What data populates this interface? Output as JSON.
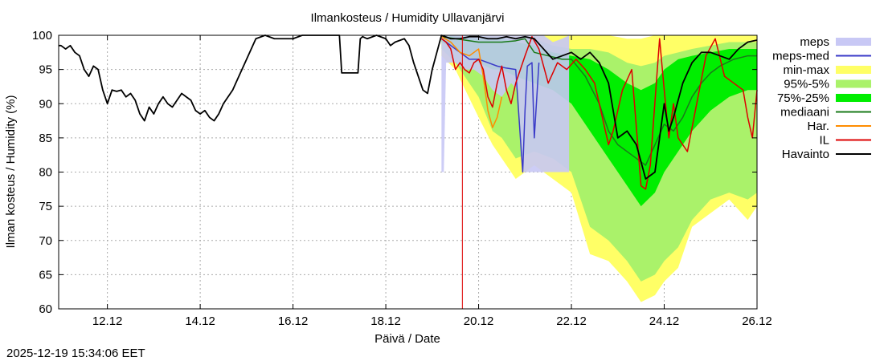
{
  "chart_data": {
    "type": "line",
    "title": "Ilmankosteus / Humidity  Ullavanjärvi",
    "xlabel": "Päivä / Date",
    "ylabel": "Ilman kosteus / Humidity (%)",
    "timestamp": "2025-12-19 15:34:06 EET",
    "xlim": [
      10.95,
      26.0
    ],
    "ylim": [
      60,
      100
    ],
    "x_unit": "day of December 2025",
    "xticks": [
      {
        "value": 12,
        "label": "12.12"
      },
      {
        "value": 14,
        "label": "14.12"
      },
      {
        "value": 16,
        "label": "16.12"
      },
      {
        "value": 18,
        "label": "18.12"
      },
      {
        "value": 20,
        "label": "20.12"
      },
      {
        "value": 22,
        "label": "22.12"
      },
      {
        "value": 24,
        "label": "24.12"
      },
      {
        "value": 26,
        "label": "26.12"
      }
    ],
    "yticks": [
      {
        "value": 60,
        "label": "60"
      },
      {
        "value": 65,
        "label": "65"
      },
      {
        "value": 70,
        "label": "70"
      },
      {
        "value": 75,
        "label": "75"
      },
      {
        "value": 80,
        "label": "80"
      },
      {
        "value": 85,
        "label": "85"
      },
      {
        "value": 90,
        "label": "90"
      },
      {
        "value": 95,
        "label": "95"
      },
      {
        "value": 100,
        "label": "100"
      }
    ],
    "grid": true,
    "now_marker": 19.65,
    "legend": [
      {
        "label": "meps",
        "kind": "band",
        "color": "#c8c8f5"
      },
      {
        "label": "meps-med",
        "kind": "line",
        "color": "#3a3ac8"
      },
      {
        "label": "min-max",
        "kind": "band",
        "color": "#ffff66"
      },
      {
        "label": "95%-5%",
        "kind": "band",
        "color": "#aaf26a"
      },
      {
        "label": "75%-25%",
        "kind": "band",
        "color": "#00ee00"
      },
      {
        "label": "mediaani",
        "kind": "line",
        "color": "#1a7a1a"
      },
      {
        "label": "Har.",
        "kind": "line",
        "color": "#ff8c00"
      },
      {
        "label": "IL",
        "kind": "line",
        "color": "#dd0000"
      },
      {
        "label": "Havainto",
        "kind": "line",
        "color": "#000000"
      }
    ],
    "series": [
      {
        "name": "meps",
        "kind": "band",
        "color": "#c8c8f5",
        "x": [
          19.2,
          19.25,
          19.3,
          19.5,
          19.7,
          19.9,
          20.1,
          20.3,
          20.5,
          20.7,
          20.85,
          20.95,
          21.0,
          21.2,
          21.4,
          21.6,
          21.8,
          21.95
        ],
        "upper": [
          100,
          100,
          100,
          100,
          100,
          100,
          100,
          100,
          100,
          100,
          100,
          100,
          100,
          100,
          100,
          99,
          99.5,
          100
        ],
        "lower": [
          80,
          80,
          96,
          96,
          95,
          95,
          94,
          92,
          91,
          93,
          92,
          80,
          80,
          80,
          80,
          80,
          80,
          80
        ]
      },
      {
        "name": "meps-med",
        "kind": "line",
        "color": "#3a3ac8",
        "x": [
          19.2,
          19.4,
          19.6,
          19.8,
          20.0,
          20.2,
          20.4,
          20.6,
          20.8,
          20.95,
          21.0,
          21.05,
          21.15,
          21.2,
          21.3
        ],
        "y": [
          99.5,
          98.5,
          97.5,
          96.5,
          96.5,
          96,
          95.5,
          95.2,
          95,
          80,
          89,
          95.5,
          96,
          85,
          96
        ]
      },
      {
        "name": "min-max",
        "kind": "band",
        "color": "#ffff66",
        "x": [
          19.2,
          19.5,
          20.0,
          20.3,
          20.5,
          20.8,
          21.2,
          21.6,
          22.0,
          22.4,
          22.8,
          23.2,
          23.5,
          23.8,
          24.0,
          24.3,
          24.6,
          25.0,
          25.4,
          25.8,
          26.0
        ],
        "upper": [
          100,
          100,
          100,
          100,
          100,
          100,
          100,
          100,
          100,
          100,
          100,
          99.5,
          99.5,
          100,
          100,
          100,
          100,
          100,
          100,
          100,
          100
        ],
        "lower": [
          97,
          95,
          88,
          84,
          82,
          79,
          81,
          79,
          77,
          68,
          67,
          64,
          61,
          62,
          64,
          66,
          72,
          74,
          76,
          73,
          75
        ]
      },
      {
        "name": "95%-5%",
        "kind": "band",
        "color": "#aaf26a",
        "x": [
          19.2,
          19.5,
          20.0,
          20.3,
          20.5,
          20.8,
          21.2,
          21.6,
          22.0,
          22.4,
          22.8,
          23.2,
          23.5,
          23.8,
          24.0,
          24.3,
          24.6,
          25.0,
          25.4,
          25.8,
          26.0
        ],
        "upper": [
          100,
          100,
          100,
          99.8,
          99.8,
          99.5,
          99.5,
          98.5,
          98,
          98,
          97.5,
          96,
          95.5,
          96,
          97,
          97.5,
          98,
          98.5,
          99,
          99,
          99
        ],
        "lower": [
          98,
          96,
          91,
          86,
          85,
          82,
          83,
          82,
          80,
          72,
          70,
          67,
          64,
          65,
          67,
          69,
          73,
          76,
          77,
          76,
          77
        ]
      },
      {
        "name": "75%-25%",
        "kind": "band",
        "color": "#00ee00",
        "x": [
          19.2,
          19.5,
          20.0,
          20.3,
          20.5,
          20.8,
          21.2,
          21.6,
          22.0,
          22.4,
          22.8,
          23.2,
          23.5,
          23.8,
          24.0,
          24.3,
          24.6,
          25.0,
          25.4,
          25.8,
          26.0
        ],
        "upper": [
          100,
          99.8,
          99.5,
          99.5,
          99.5,
          99,
          98.5,
          97.5,
          97,
          96.5,
          95,
          93,
          92,
          93,
          95,
          96.5,
          97,
          97.5,
          98,
          98,
          98
        ],
        "lower": [
          99,
          98,
          96,
          95,
          95,
          94,
          93,
          92,
          90,
          86,
          82,
          78,
          75,
          77,
          80,
          83,
          86,
          89,
          91,
          92,
          92
        ]
      },
      {
        "name": "mediaani",
        "kind": "line",
        "color": "#1a7a1a",
        "x": [
          19.2,
          19.5,
          20.0,
          20.3,
          20.5,
          20.8,
          21.0,
          21.2,
          21.5,
          21.8,
          22.0,
          22.3,
          22.6,
          22.8,
          23.0,
          23.2,
          23.4,
          23.6,
          23.8,
          24.0,
          24.2,
          24.4,
          24.6,
          24.8,
          25.0,
          25.2,
          25.5,
          25.8,
          26.0
        ],
        "y": [
          99.8,
          99.5,
          99,
          99,
          99,
          99.2,
          99.5,
          97.5,
          97,
          96.5,
          96.5,
          94,
          90,
          86,
          84,
          83,
          82,
          81,
          84,
          87,
          86,
          88,
          91,
          93,
          94.5,
          95.5,
          96.5,
          97,
          97
        ]
      },
      {
        "name": "Har.",
        "kind": "line",
        "color": "#ff8c00",
        "x": [
          19.2,
          19.4,
          19.6,
          19.8,
          20.0,
          20.1,
          20.2,
          20.3,
          20.4,
          20.5
        ],
        "y": [
          99.8,
          99,
          97.5,
          97,
          98,
          94,
          89,
          86.5,
          88,
          91
        ]
      },
      {
        "name": "IL",
        "kind": "line",
        "color": "#dd0000",
        "x": [
          19.2,
          19.3,
          19.4,
          19.5,
          19.6,
          19.7,
          19.8,
          19.9,
          20.0,
          20.1,
          20.2,
          20.3,
          20.4,
          20.5,
          20.6,
          20.7,
          20.8,
          20.9,
          21.0,
          21.15,
          21.3,
          21.5,
          21.7,
          21.9,
          22.1,
          22.3,
          22.5,
          22.7,
          22.8,
          22.9,
          23.1,
          23.3,
          23.5,
          23.6,
          23.7,
          23.9,
          24.0,
          24.1,
          24.2,
          24.3,
          24.5,
          24.7,
          24.9,
          25.1,
          25.3,
          25.5,
          25.7,
          25.8,
          25.9,
          26.0
        ],
        "y": [
          99.5,
          99,
          98,
          95,
          96,
          95,
          94.5,
          96,
          96.5,
          95,
          91,
          89.5,
          93,
          95.5,
          92,
          90,
          93,
          95,
          97,
          99.8,
          98,
          93,
          96,
          95,
          96.5,
          95,
          93,
          87,
          84,
          86,
          92,
          95,
          78,
          77.5,
          81,
          99.5,
          92,
          85,
          90,
          85,
          83,
          90,
          97,
          99.5,
          94,
          93,
          92,
          88,
          85,
          92
        ]
      },
      {
        "name": "Havainto",
        "kind": "line",
        "color": "#000000",
        "x": [
          10.95,
          11.0,
          11.1,
          11.2,
          11.3,
          11.4,
          11.5,
          11.6,
          11.7,
          11.8,
          11.9,
          12.0,
          12.1,
          12.2,
          12.3,
          12.4,
          12.5,
          12.6,
          12.7,
          12.8,
          12.9,
          13.0,
          13.1,
          13.2,
          13.3,
          13.4,
          13.5,
          13.6,
          13.7,
          13.8,
          13.9,
          14.0,
          14.1,
          14.2,
          14.3,
          14.4,
          14.5,
          14.6,
          14.7,
          14.8,
          14.9,
          15.0,
          15.2,
          15.4,
          15.6,
          15.8,
          16.0,
          16.2,
          16.4,
          16.6,
          16.8,
          17.0,
          17.05,
          17.1,
          17.2,
          17.4,
          17.45,
          17.5,
          17.6,
          17.8,
          18.0,
          18.1,
          18.2,
          18.4,
          18.5,
          18.6,
          18.7,
          18.8,
          18.9,
          19.0,
          19.1,
          19.2,
          19.4,
          19.6,
          19.8,
          20.0,
          20.2,
          20.4,
          20.6,
          20.8,
          21.0,
          21.2,
          21.4,
          21.6,
          21.8,
          22.0,
          22.2,
          22.4,
          22.6,
          22.8,
          23.0,
          23.2,
          23.4,
          23.6,
          23.8,
          24.0,
          24.1,
          24.2,
          24.4,
          24.6,
          24.8,
          25.0,
          25.2,
          25.4,
          25.6,
          25.8,
          26.0
        ],
        "y": [
          98.5,
          98.5,
          98,
          98.5,
          97.5,
          97,
          95,
          94,
          95.5,
          95,
          92,
          90,
          92,
          91.8,
          92,
          91,
          91.5,
          90.5,
          88.5,
          87.5,
          89.5,
          88.5,
          90,
          91,
          90,
          89.5,
          90.5,
          91.5,
          91,
          90.5,
          89,
          88.5,
          89,
          88,
          87.5,
          88.5,
          90,
          91,
          92,
          93.5,
          95,
          96.5,
          99.5,
          100,
          99.5,
          99.5,
          99.5,
          100,
          100,
          100,
          100,
          100,
          94.5,
          94.5,
          94.5,
          94.5,
          99.5,
          99.8,
          99.5,
          100,
          99.5,
          98.5,
          99,
          99.5,
          98.5,
          96,
          94,
          92,
          91.5,
          95,
          97.5,
          100,
          99.5,
          99.5,
          99.8,
          99.8,
          99.5,
          99.5,
          99.8,
          99.5,
          99.8,
          99.5,
          98,
          96.5,
          97,
          97.5,
          96.5,
          97.5,
          96,
          93,
          85,
          86,
          84,
          79,
          80,
          90,
          86,
          88,
          93,
          96,
          97.5,
          97.5,
          97,
          96.5,
          98,
          99,
          99.3
        ]
      }
    ]
  }
}
